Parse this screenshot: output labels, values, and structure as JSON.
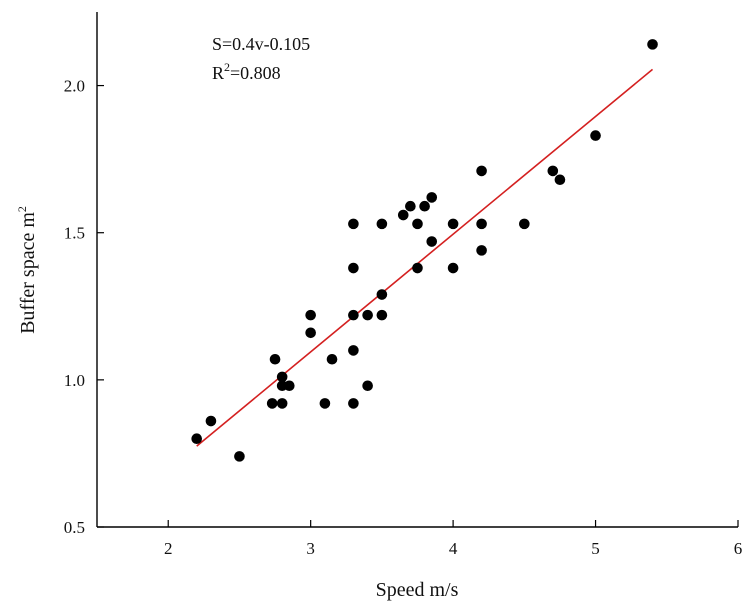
{
  "chart_data": {
    "type": "scatter",
    "title": "",
    "xlabel": "Speed m/s",
    "ylabel_main": "Buffer space m",
    "ylabel_sup": "2",
    "xlim": [
      1.5,
      6
    ],
    "ylim": [
      0.5,
      2.25
    ],
    "xticks": [
      2,
      3,
      4,
      5,
      6
    ],
    "xtick_labels": [
      "2",
      "3",
      "4",
      "5",
      "6"
    ],
    "yticks": [
      0.5,
      1.0,
      1.5,
      2.0
    ],
    "ytick_labels": [
      "0.5",
      "1.0",
      "1.5",
      "2.0"
    ],
    "grid": false,
    "point_color": "#000000",
    "line_color": "#d42020",
    "annotation": {
      "equation": "S=0.4v-0.105",
      "r2_prefix": "R",
      "r2_sup": "2",
      "r2_suffix": "=0.808"
    },
    "fit_line": {
      "slope": 0.4,
      "intercept": -0.105,
      "x_start": 2.2,
      "x_end": 5.4
    },
    "series": [
      {
        "points": [
          {
            "x": 2.2,
            "y": 0.8
          },
          {
            "x": 2.3,
            "y": 0.86
          },
          {
            "x": 2.5,
            "y": 0.74
          },
          {
            "x": 2.73,
            "y": 0.92
          },
          {
            "x": 2.75,
            "y": 1.07
          },
          {
            "x": 2.8,
            "y": 1.01
          },
          {
            "x": 2.8,
            "y": 0.98
          },
          {
            "x": 2.8,
            "y": 0.92
          },
          {
            "x": 2.85,
            "y": 0.98
          },
          {
            "x": 3.0,
            "y": 1.22
          },
          {
            "x": 3.0,
            "y": 1.16
          },
          {
            "x": 3.1,
            "y": 0.92
          },
          {
            "x": 3.15,
            "y": 1.07
          },
          {
            "x": 3.3,
            "y": 1.53
          },
          {
            "x": 3.3,
            "y": 1.38
          },
          {
            "x": 3.3,
            "y": 1.22
          },
          {
            "x": 3.3,
            "y": 1.1
          },
          {
            "x": 3.3,
            "y": 0.92
          },
          {
            "x": 3.4,
            "y": 1.22
          },
          {
            "x": 3.4,
            "y": 0.98
          },
          {
            "x": 3.5,
            "y": 1.53
          },
          {
            "x": 3.5,
            "y": 1.29
          },
          {
            "x": 3.5,
            "y": 1.22
          },
          {
            "x": 3.65,
            "y": 1.56
          },
          {
            "x": 3.7,
            "y": 1.59
          },
          {
            "x": 3.75,
            "y": 1.53
          },
          {
            "x": 3.75,
            "y": 1.38
          },
          {
            "x": 3.8,
            "y": 1.59
          },
          {
            "x": 3.85,
            "y": 1.62
          },
          {
            "x": 3.85,
            "y": 1.47
          },
          {
            "x": 4.0,
            "y": 1.53
          },
          {
            "x": 4.0,
            "y": 1.38
          },
          {
            "x": 4.2,
            "y": 1.71
          },
          {
            "x": 4.2,
            "y": 1.53
          },
          {
            "x": 4.2,
            "y": 1.44
          },
          {
            "x": 4.5,
            "y": 1.53
          },
          {
            "x": 4.7,
            "y": 1.71
          },
          {
            "x": 4.75,
            "y": 1.68
          },
          {
            "x": 5.0,
            "y": 1.83
          },
          {
            "x": 5.4,
            "y": 2.14
          }
        ]
      }
    ]
  }
}
